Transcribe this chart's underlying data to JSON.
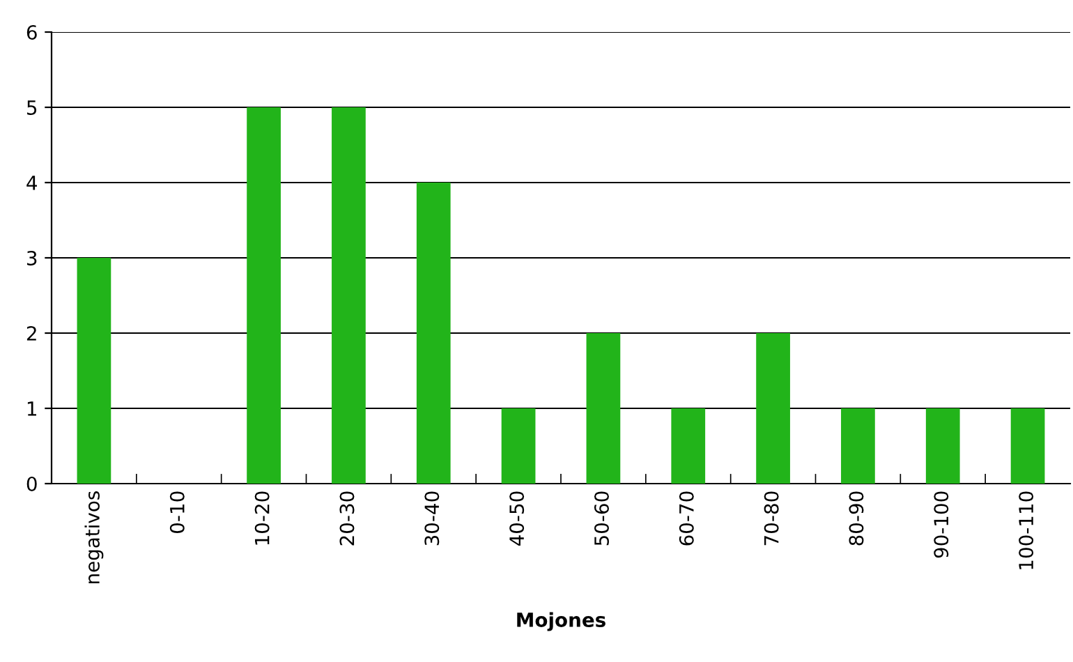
{
  "chart_data": {
    "type": "bar",
    "xlabel": "Mojones",
    "categories": [
      "negativos",
      "0-10",
      "10-20",
      "20-30",
      "30-40",
      "40-50",
      "50-60",
      "60-70",
      "70-80",
      "80-90",
      "90-100",
      "100-110"
    ],
    "values": [
      3,
      0,
      5,
      5,
      4,
      1,
      2,
      1,
      2,
      1,
      1,
      1
    ],
    "color": "#22b41a",
    "ylim": [
      0,
      6
    ],
    "yticks": [
      0,
      1,
      2,
      3,
      4,
      5,
      6
    ],
    "grid": "y",
    "legend": false
  }
}
